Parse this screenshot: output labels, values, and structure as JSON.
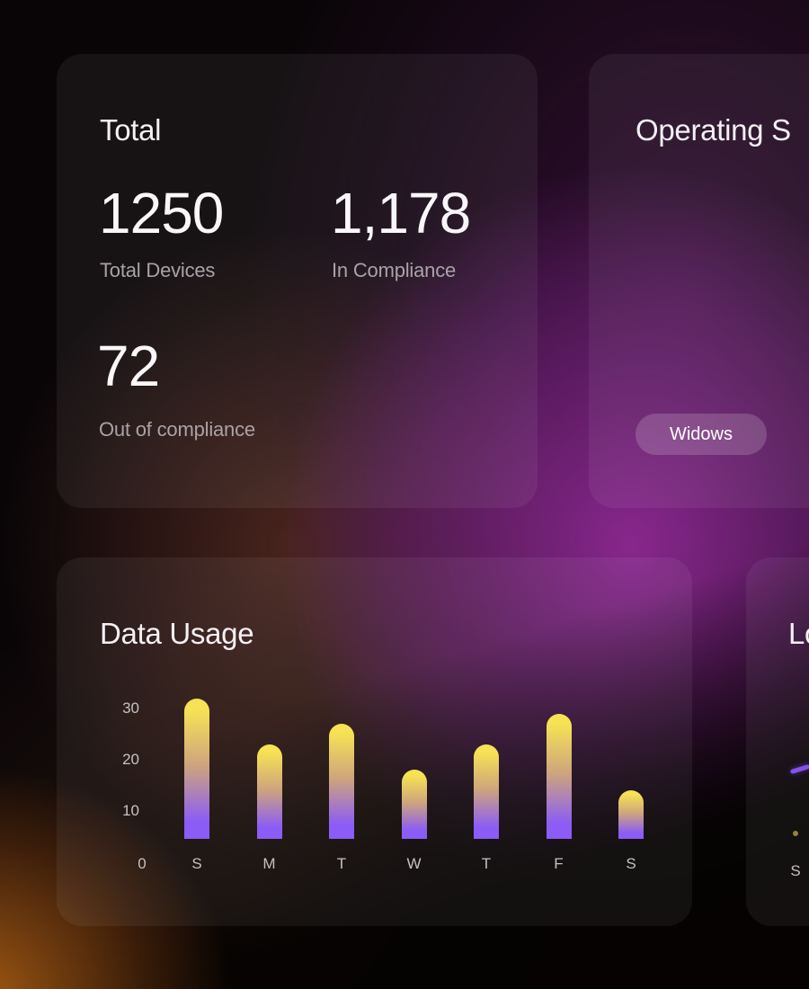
{
  "cards": {
    "total": {
      "title": "Total",
      "stats": [
        {
          "value": "1250",
          "label": "Total Devices"
        },
        {
          "value": "1,178",
          "label": "In Compliance"
        },
        {
          "value": "72",
          "label": "Out of compliance"
        }
      ]
    },
    "operating_systems": {
      "title": "Operating S",
      "pill": "Widows"
    },
    "data_usage": {
      "title": "Data Usage"
    },
    "line_card": {
      "title": "Lo",
      "x_label": "S"
    }
  },
  "chart_data": [
    {
      "type": "bar",
      "title": "Data Usage",
      "categories": [
        "S",
        "M",
        "T",
        "W",
        "T",
        "F",
        "S"
      ],
      "values": [
        32,
        23,
        27,
        18,
        23,
        29,
        14
      ],
      "yticks": [
        10,
        20,
        30
      ],
      "origin_label": "0",
      "xlabel": "",
      "ylabel": "",
      "ylim": [
        0,
        33
      ],
      "grid": false,
      "bar_gradient_top": "#f6e254",
      "bar_gradient_mid": "#cda47d",
      "bar_gradient_bottom": "#8b5cf6"
    },
    {
      "type": "line",
      "title": "Lo",
      "categories": [
        "S"
      ],
      "line_color": "#8450f0",
      "marker_color": "#a89a3e"
    }
  ],
  "colors": {
    "background": "#090507",
    "glow_purple": "#9a2ca0",
    "glow_orange": "#e07a1a",
    "accent_purple": "#8b5cf6",
    "accent_yellow": "#f6e254",
    "title_text": "#f4f0f4",
    "muted_text": "#a9a2a8"
  }
}
